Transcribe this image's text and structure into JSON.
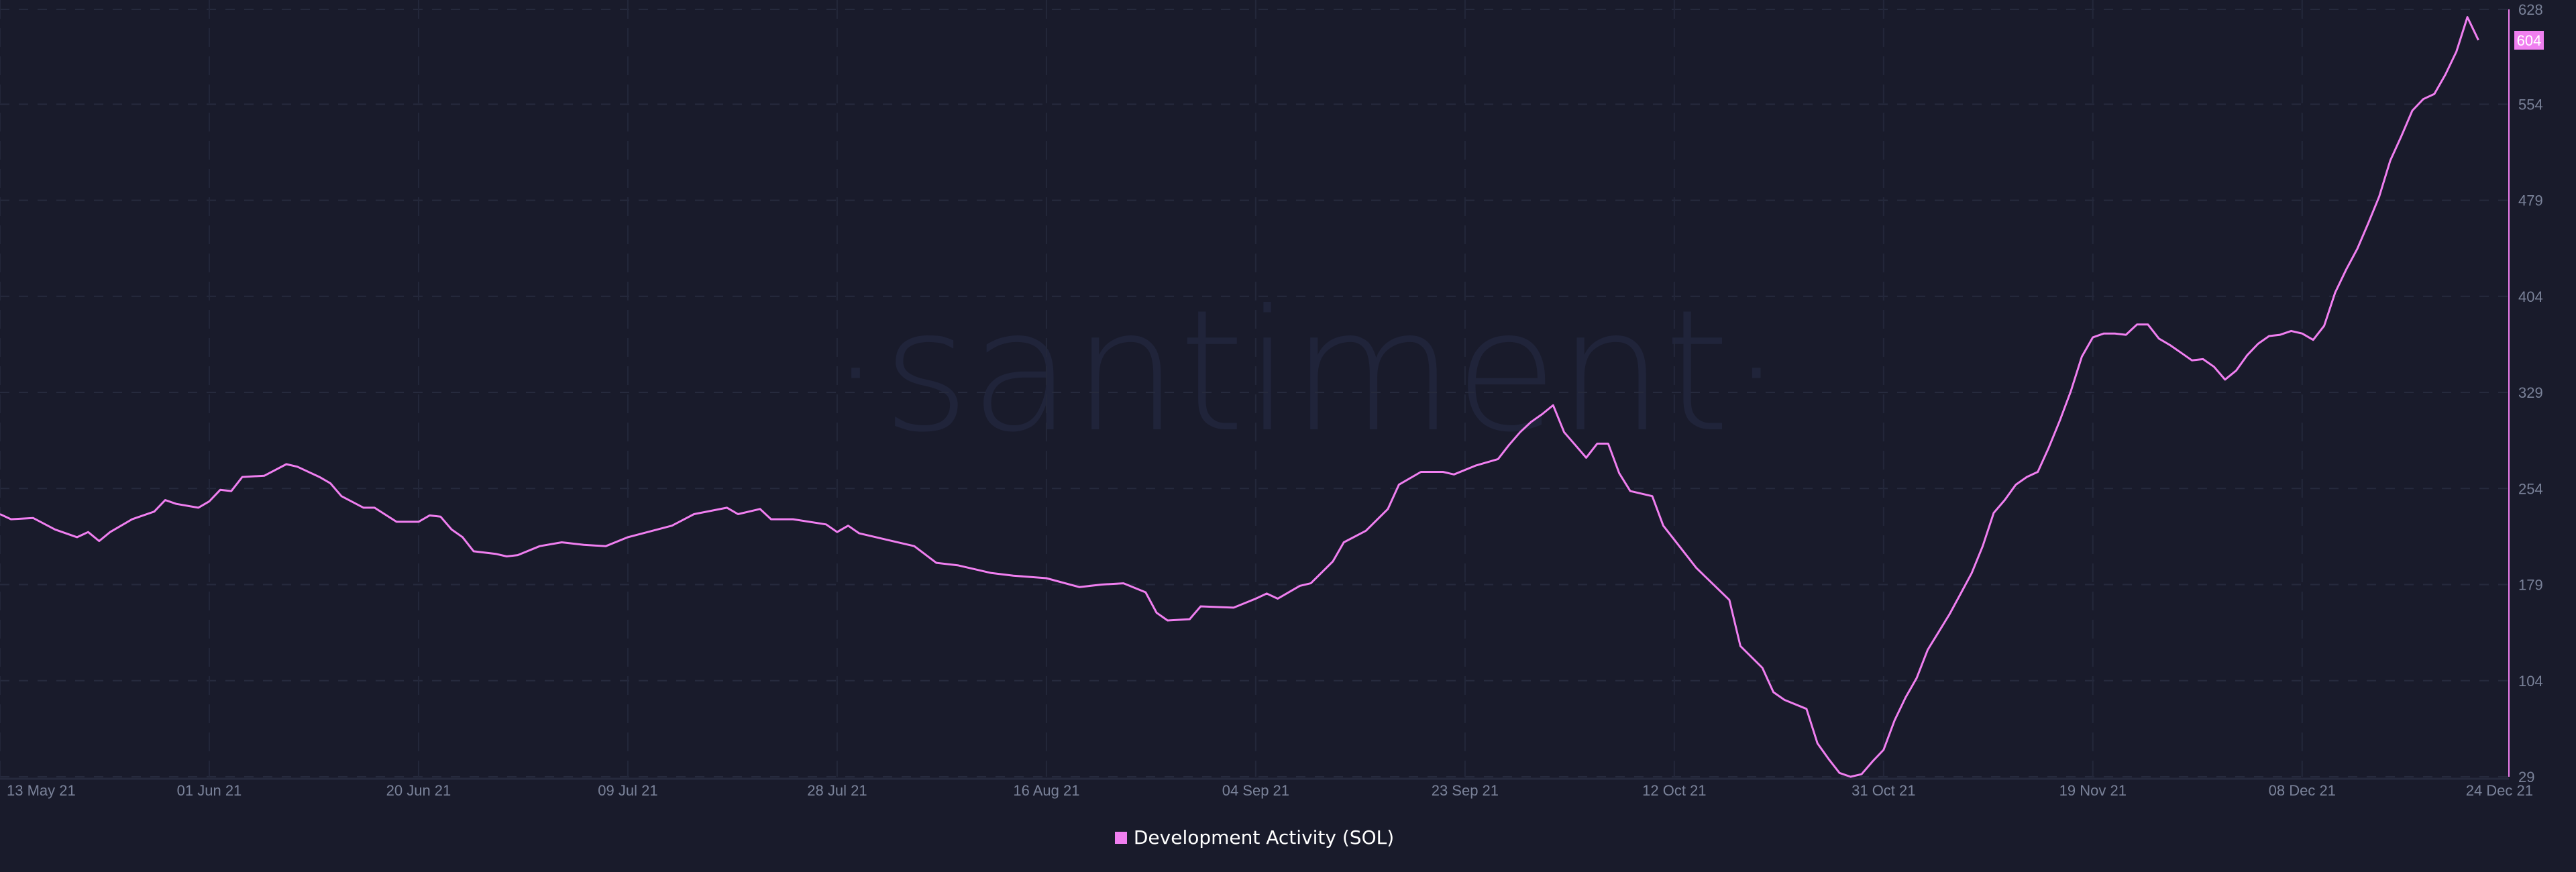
{
  "chart_data": {
    "type": "line",
    "title": "",
    "xlabel": "",
    "ylabel": "",
    "watermark": "·santiment·",
    "grid": true,
    "y_axis_position": "right",
    "legend_position": "bottom-center",
    "ylim": [
      29,
      628
    ],
    "y_ticks": [
      "628",
      "554",
      "479",
      "404",
      "329",
      "254",
      "179",
      "104",
      "29"
    ],
    "x_ticks": [
      {
        "date": "2021-05-13",
        "label": "13 May 21"
      },
      {
        "date": "2021-06-01",
        "label": "01 Jun 21"
      },
      {
        "date": "2021-06-20",
        "label": "20 Jun 21"
      },
      {
        "date": "2021-07-09",
        "label": "09 Jul 21"
      },
      {
        "date": "2021-07-28",
        "label": "28 Jul 21"
      },
      {
        "date": "2021-08-16",
        "label": "16 Aug 21"
      },
      {
        "date": "2021-09-04",
        "label": "04 Sep 21"
      },
      {
        "date": "2021-09-23",
        "label": "23 Sep 21"
      },
      {
        "date": "2021-10-12",
        "label": "12 Oct 21"
      },
      {
        "date": "2021-10-31",
        "label": "31 Oct 21"
      },
      {
        "date": "2021-11-19",
        "label": "19 Nov 21"
      },
      {
        "date": "2021-12-08",
        "label": "08 Dec 21"
      },
      {
        "date": "2021-12-24",
        "label": "24 Dec 21"
      }
    ],
    "current_value_label": "604",
    "series": [
      {
        "name": "Development Activity (SOL)",
        "color": "#f07ff0",
        "points": [
          [
            "2021-05-13",
            234
          ],
          [
            "2021-05-14",
            230
          ],
          [
            "2021-05-16",
            231
          ],
          [
            "2021-05-18",
            222
          ],
          [
            "2021-05-20",
            216
          ],
          [
            "2021-05-21",
            220
          ],
          [
            "2021-05-22",
            213
          ],
          [
            "2021-05-23",
            220
          ],
          [
            "2021-05-25",
            230
          ],
          [
            "2021-05-27",
            236
          ],
          [
            "2021-05-28",
            245
          ],
          [
            "2021-05-29",
            242
          ],
          [
            "2021-05-31",
            239
          ],
          [
            "2021-06-01",
            244
          ],
          [
            "2021-06-02",
            253
          ],
          [
            "2021-06-03",
            252
          ],
          [
            "2021-06-04",
            263
          ],
          [
            "2021-06-06",
            264
          ],
          [
            "2021-06-08",
            273
          ],
          [
            "2021-06-09",
            271
          ],
          [
            "2021-06-11",
            263
          ],
          [
            "2021-06-12",
            258
          ],
          [
            "2021-06-13",
            248
          ],
          [
            "2021-06-15",
            239
          ],
          [
            "2021-06-16",
            239
          ],
          [
            "2021-06-18",
            228
          ],
          [
            "2021-06-20",
            228
          ],
          [
            "2021-06-21",
            233
          ],
          [
            "2021-06-22",
            232
          ],
          [
            "2021-06-23",
            222
          ],
          [
            "2021-06-24",
            216
          ],
          [
            "2021-06-25",
            205
          ],
          [
            "2021-06-27",
            203
          ],
          [
            "2021-06-28",
            201
          ],
          [
            "2021-06-29",
            202
          ],
          [
            "2021-07-01",
            209
          ],
          [
            "2021-07-03",
            212
          ],
          [
            "2021-07-05",
            210
          ],
          [
            "2021-07-07",
            209
          ],
          [
            "2021-07-09",
            216
          ],
          [
            "2021-07-13",
            225
          ],
          [
            "2021-07-15",
            234
          ],
          [
            "2021-07-18",
            239
          ],
          [
            "2021-07-19",
            234
          ],
          [
            "2021-07-21",
            238
          ],
          [
            "2021-07-22",
            230
          ],
          [
            "2021-07-24",
            230
          ],
          [
            "2021-07-27",
            226
          ],
          [
            "2021-07-28",
            220
          ],
          [
            "2021-07-29",
            225
          ],
          [
            "2021-07-30",
            219
          ],
          [
            "2021-08-02",
            213
          ],
          [
            "2021-08-04",
            209
          ],
          [
            "2021-08-06",
            196
          ],
          [
            "2021-08-08",
            194
          ],
          [
            "2021-08-11",
            188
          ],
          [
            "2021-08-13",
            186
          ],
          [
            "2021-08-16",
            184
          ],
          [
            "2021-08-19",
            177
          ],
          [
            "2021-08-21",
            179
          ],
          [
            "2021-08-23",
            180
          ],
          [
            "2021-08-25",
            173
          ],
          [
            "2021-08-26",
            157
          ],
          [
            "2021-08-27",
            151
          ],
          [
            "2021-08-29",
            152
          ],
          [
            "2021-08-30",
            162
          ],
          [
            "2021-09-02",
            161
          ],
          [
            "2021-09-04",
            168
          ],
          [
            "2021-09-05",
            172
          ],
          [
            "2021-09-06",
            168
          ],
          [
            "2021-09-08",
            178
          ],
          [
            "2021-09-09",
            180
          ],
          [
            "2021-09-11",
            197
          ],
          [
            "2021-09-12",
            212
          ],
          [
            "2021-09-14",
            221
          ],
          [
            "2021-09-16",
            238
          ],
          [
            "2021-09-17",
            257
          ],
          [
            "2021-09-19",
            267
          ],
          [
            "2021-09-21",
            267
          ],
          [
            "2021-09-22",
            265
          ],
          [
            "2021-09-24",
            272
          ],
          [
            "2021-09-26",
            277
          ],
          [
            "2021-09-27",
            288
          ],
          [
            "2021-09-28",
            298
          ],
          [
            "2021-09-29",
            306
          ],
          [
            "2021-09-30",
            312
          ],
          [
            "2021-10-01",
            319
          ],
          [
            "2021-10-02",
            298
          ],
          [
            "2021-10-03",
            288
          ],
          [
            "2021-10-04",
            278
          ],
          [
            "2021-10-05",
            289
          ],
          [
            "2021-10-06",
            289
          ],
          [
            "2021-10-07",
            266
          ],
          [
            "2021-10-08",
            252
          ],
          [
            "2021-10-10",
            248
          ],
          [
            "2021-10-11",
            225
          ],
          [
            "2021-10-13",
            203
          ],
          [
            "2021-10-14",
            192
          ],
          [
            "2021-10-17",
            167
          ],
          [
            "2021-10-18",
            131
          ],
          [
            "2021-10-20",
            114
          ],
          [
            "2021-10-21",
            95
          ],
          [
            "2021-10-22",
            89
          ],
          [
            "2021-10-24",
            82
          ],
          [
            "2021-10-25",
            55
          ],
          [
            "2021-10-26",
            43
          ],
          [
            "2021-10-27",
            32
          ],
          [
            "2021-10-28",
            29
          ],
          [
            "2021-10-29",
            31
          ],
          [
            "2021-10-30",
            41
          ],
          [
            "2021-10-31",
            50
          ],
          [
            "2021-11-01",
            73
          ],
          [
            "2021-11-02",
            91
          ],
          [
            "2021-11-03",
            106
          ],
          [
            "2021-11-04",
            128
          ],
          [
            "2021-11-05",
            142
          ],
          [
            "2021-11-06",
            156
          ],
          [
            "2021-11-07",
            172
          ],
          [
            "2021-11-08",
            188
          ],
          [
            "2021-11-09",
            209
          ],
          [
            "2021-11-10",
            235
          ],
          [
            "2021-11-11",
            245
          ],
          [
            "2021-11-12",
            257
          ],
          [
            "2021-11-13",
            263
          ],
          [
            "2021-11-14",
            267
          ],
          [
            "2021-11-15",
            286
          ],
          [
            "2021-11-16",
            307
          ],
          [
            "2021-11-17",
            330
          ],
          [
            "2021-11-18",
            357
          ],
          [
            "2021-11-19",
            372
          ],
          [
            "2021-11-20",
            375
          ],
          [
            "2021-11-21",
            375
          ],
          [
            "2021-11-22",
            374
          ],
          [
            "2021-11-23",
            382
          ],
          [
            "2021-11-24",
            382
          ],
          [
            "2021-11-25",
            371
          ],
          [
            "2021-11-26",
            366
          ],
          [
            "2021-11-27",
            360
          ],
          [
            "2021-11-28",
            354
          ],
          [
            "2021-11-29",
            355
          ],
          [
            "2021-11-30",
            349
          ],
          [
            "2021-12-01",
            339
          ],
          [
            "2021-12-02",
            346
          ],
          [
            "2021-12-03",
            358
          ],
          [
            "2021-12-04",
            367
          ],
          [
            "2021-12-05",
            373
          ],
          [
            "2021-12-06",
            374
          ],
          [
            "2021-12-07",
            377
          ],
          [
            "2021-12-08",
            375
          ],
          [
            "2021-12-09",
            370
          ],
          [
            "2021-12-10",
            381
          ],
          [
            "2021-12-11",
            407
          ],
          [
            "2021-12-12",
            425
          ],
          [
            "2021-12-13",
            441
          ],
          [
            "2021-12-14",
            461
          ],
          [
            "2021-12-15",
            482
          ],
          [
            "2021-12-16",
            510
          ],
          [
            "2021-12-17",
            529
          ],
          [
            "2021-12-18",
            549
          ],
          [
            "2021-12-19",
            558
          ],
          [
            "2021-12-20",
            562
          ],
          [
            "2021-12-21",
            577
          ],
          [
            "2021-12-22",
            595
          ],
          [
            "2021-12-23",
            622
          ],
          [
            "2021-12-24",
            604
          ]
        ]
      }
    ]
  }
}
